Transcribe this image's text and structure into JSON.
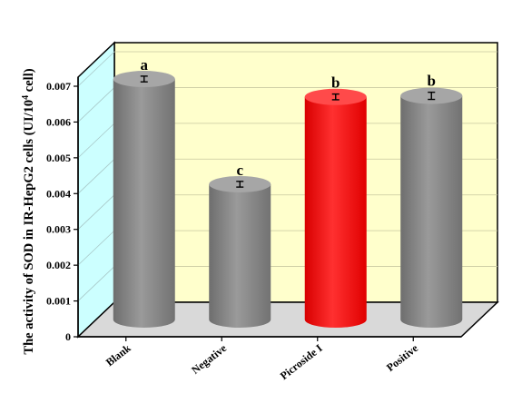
{
  "chart_data": {
    "type": "bar",
    "style": "3d-cylinder",
    "title": "",
    "xlabel": "",
    "ylabel": "The activity of SOD in IR-HepG2 cells (UI/10",
    "ylabel_sup": "4",
    "ylabel_end": " cell)",
    "ylim": [
      0,
      0.007
    ],
    "yticks": [
      "0",
      "0.001",
      "0.002",
      "0.003",
      "0.004",
      "0.005",
      "0.006",
      "0.007"
    ],
    "grid": true,
    "categories": [
      "Blank",
      "Negative",
      "Picroside I",
      "Positive"
    ],
    "values": [
      0.00672,
      0.00378,
      0.00622,
      0.00625
    ],
    "errors": [
      8e-05,
      8e-05,
      8e-05,
      0.0001
    ],
    "significance": [
      "a",
      "c",
      "b",
      "b"
    ],
    "colors": [
      "#8c8c8c",
      "#8c8c8c",
      "#ff2020",
      "#8c8c8c"
    ],
    "wall_colors": {
      "back": "#ffffcc",
      "side": "#ccffff",
      "floor": "#d9d9d9"
    }
  }
}
